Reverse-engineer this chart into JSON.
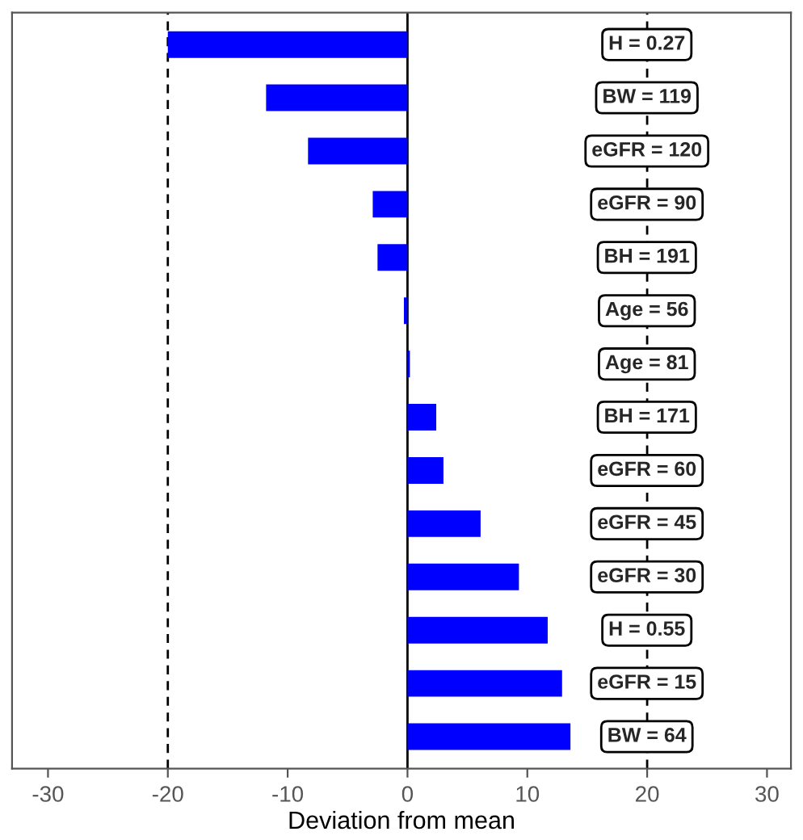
{
  "chart_data": {
    "type": "bar",
    "orientation": "horizontal",
    "xlabel": "Deviation from mean",
    "categories": [
      "H = 0.27",
      "BW = 119",
      "eGFR = 120",
      "eGFR = 90",
      "BH = 191",
      "Age = 56",
      "Age = 81",
      "BH = 171",
      "eGFR = 60",
      "eGFR = 45",
      "eGFR = 30",
      "H = 0.55",
      "eGFR = 15",
      "BW = 64"
    ],
    "values": [
      -20.0,
      -11.8,
      -8.3,
      -2.9,
      -2.5,
      -0.3,
      0.2,
      2.4,
      3.0,
      6.1,
      9.3,
      11.7,
      12.9,
      13.6
    ],
    "color": "#0000ff",
    "xlim": [
      -33,
      32
    ],
    "xticks": [
      -30,
      -20,
      -10,
      0,
      10,
      20,
      30
    ],
    "ref_lines": [
      {
        "axis": "x",
        "value": -20,
        "line_style": "dashed",
        "color": "#000000"
      },
      {
        "axis": "x",
        "value": 0,
        "line_style": "solid",
        "color": "#000000"
      },
      {
        "axis": "x",
        "value": 20,
        "line_style": "dashed",
        "color": "#000000"
      }
    ],
    "grid": false,
    "legend": false
  }
}
